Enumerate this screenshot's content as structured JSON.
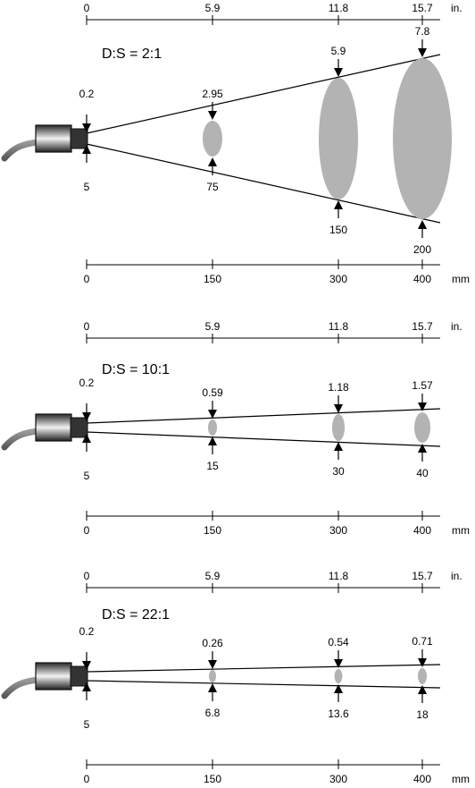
{
  "units": {
    "inch": "in.",
    "mm": "mm"
  },
  "colors": {
    "spot": "#b3b3b3",
    "line": "#000000",
    "sensor_body": "#555555",
    "sensor_tip": "#333333"
  },
  "icons": {
    "sensor": "ir-sensor-icon",
    "arrow": "arrow-icon"
  },
  "panels": [
    {
      "ratio_label": "D:S = 2:1",
      "inch_ticks": [
        "0",
        "5.9",
        "11.8",
        "15.7"
      ],
      "mm_ticks": [
        "0",
        "150",
        "300",
        "400"
      ],
      "origin": {
        "top_label": "0.2",
        "bottom_label": "5"
      },
      "spots": [
        {
          "mm": 150,
          "diameter_mm": 75,
          "top_label": "2.95",
          "bottom_label": "75"
        },
        {
          "mm": 300,
          "diameter_mm": 150,
          "top_label": "5.9",
          "bottom_label": "150"
        },
        {
          "mm": 400,
          "diameter_mm": 200,
          "top_label": "7.8",
          "bottom_label": "200"
        }
      ]
    },
    {
      "ratio_label": "D:S = 10:1",
      "inch_ticks": [
        "0",
        "5.9",
        "11.8",
        "15.7"
      ],
      "mm_ticks": [
        "0",
        "150",
        "300",
        "400"
      ],
      "origin": {
        "top_label": "0.2",
        "bottom_label": "5"
      },
      "spots": [
        {
          "mm": 150,
          "diameter_mm": 15,
          "top_label": "0.59",
          "bottom_label": "15"
        },
        {
          "mm": 300,
          "diameter_mm": 30,
          "top_label": "1.18",
          "bottom_label": "30"
        },
        {
          "mm": 400,
          "diameter_mm": 40,
          "top_label": "1.57",
          "bottom_label": "40"
        }
      ]
    },
    {
      "ratio_label": "D:S = 22:1",
      "inch_ticks": [
        "0",
        "5.9",
        "11.8",
        "15.7"
      ],
      "mm_ticks": [
        "0",
        "150",
        "300",
        "400"
      ],
      "origin": {
        "top_label": "0.2",
        "bottom_label": "5"
      },
      "spots": [
        {
          "mm": 150,
          "diameter_mm": 6.8,
          "top_label": "0.26",
          "bottom_label": "6.8"
        },
        {
          "mm": 300,
          "diameter_mm": 13.6,
          "top_label": "0.54",
          "bottom_label": "13.6"
        },
        {
          "mm": 400,
          "diameter_mm": 18,
          "top_label": "0.71",
          "bottom_label": "18"
        }
      ]
    }
  ]
}
